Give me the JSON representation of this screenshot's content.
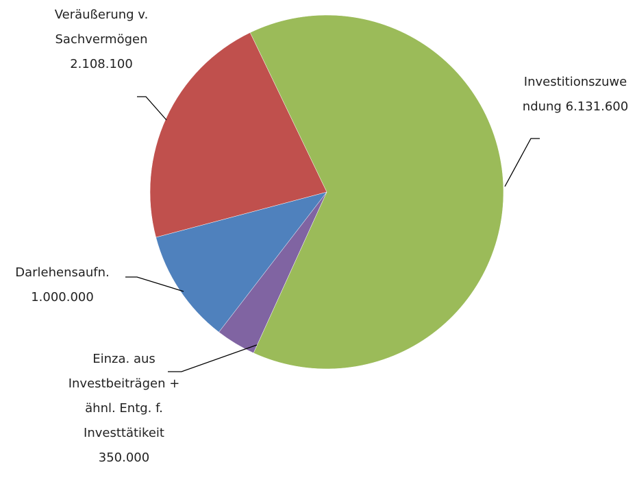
{
  "chart_data": {
    "type": "pie",
    "categories": [
      "Investitionszuwendung",
      "Einza. aus Investbeiträgen + ähnl. Entg. f. Investtätikeit",
      "Darlehensaufn.",
      "Veräußerung v. Sachvermögen"
    ],
    "values": [
      6131600,
      350000,
      1000000,
      2108100
    ],
    "value_labels": [
      "6.131.600",
      "350.000",
      "1.000.000",
      "2.108.100"
    ],
    "colors": [
      "#9bbb59",
      "#8064a2",
      "#4f81bd",
      "#c0504d"
    ]
  }
}
